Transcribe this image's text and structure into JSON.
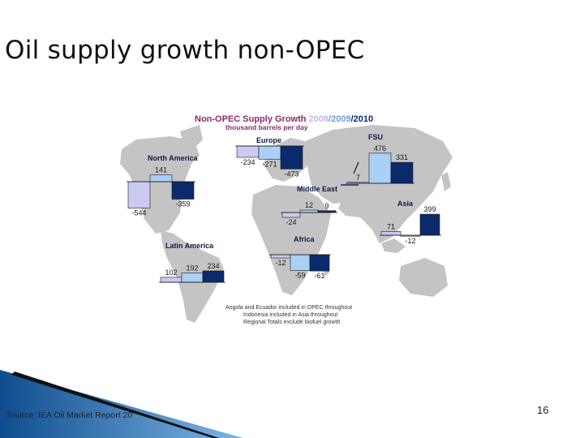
{
  "slide": {
    "title": "Oil supply growth non-OPEC",
    "source": "Source: IEA Oil Market Report 20",
    "page_number": "16"
  },
  "chart_data": {
    "type": "bar",
    "title_prefix": "Non-OPEC Supply Growth ",
    "title_years": [
      "2008",
      "/2009",
      "/2010"
    ],
    "subtitle": "thousand barrels per day",
    "series_names": [
      "2008",
      "2009",
      "2010"
    ],
    "series_colors": [
      "#c9c9f2",
      "#a9d0f5",
      "#0b2a6b"
    ],
    "regions": [
      {
        "name": "North America",
        "values": [
          -544,
          141,
          -359
        ],
        "labels": [
          "-544",
          "141",
          "-359"
        ]
      },
      {
        "name": "Europe",
        "values": [
          -234,
          -271,
          -473
        ],
        "labels": [
          "-234",
          "-271",
          "-473"
        ]
      },
      {
        "name": "FSU",
        "values": [
          7,
          476,
          331
        ],
        "labels": [
          "7",
          "476",
          "331"
        ]
      },
      {
        "name": "Middle East",
        "values": [
          -24,
          12,
          9
        ],
        "labels": [
          "-24",
          "12",
          "9"
        ]
      },
      {
        "name": "Asia",
        "values": [
          71,
          -12,
          399
        ],
        "labels": [
          "71",
          "-12",
          "399"
        ]
      },
      {
        "name": "Latin America",
        "values": [
          102,
          192,
          234
        ],
        "labels": [
          "102",
          "192",
          "234"
        ]
      },
      {
        "name": "Africa",
        "values": [
          -12,
          -59,
          -61
        ],
        "labels": [
          "-12",
          "-59",
          "-61"
        ]
      }
    ],
    "notes": [
      "Angola and Ecuador included in OPEC throughout",
      "Indonesia included in Asia throughout",
      "Regional Totals exclude biofuel growth"
    ],
    "map_color": "#c4c4c4"
  }
}
